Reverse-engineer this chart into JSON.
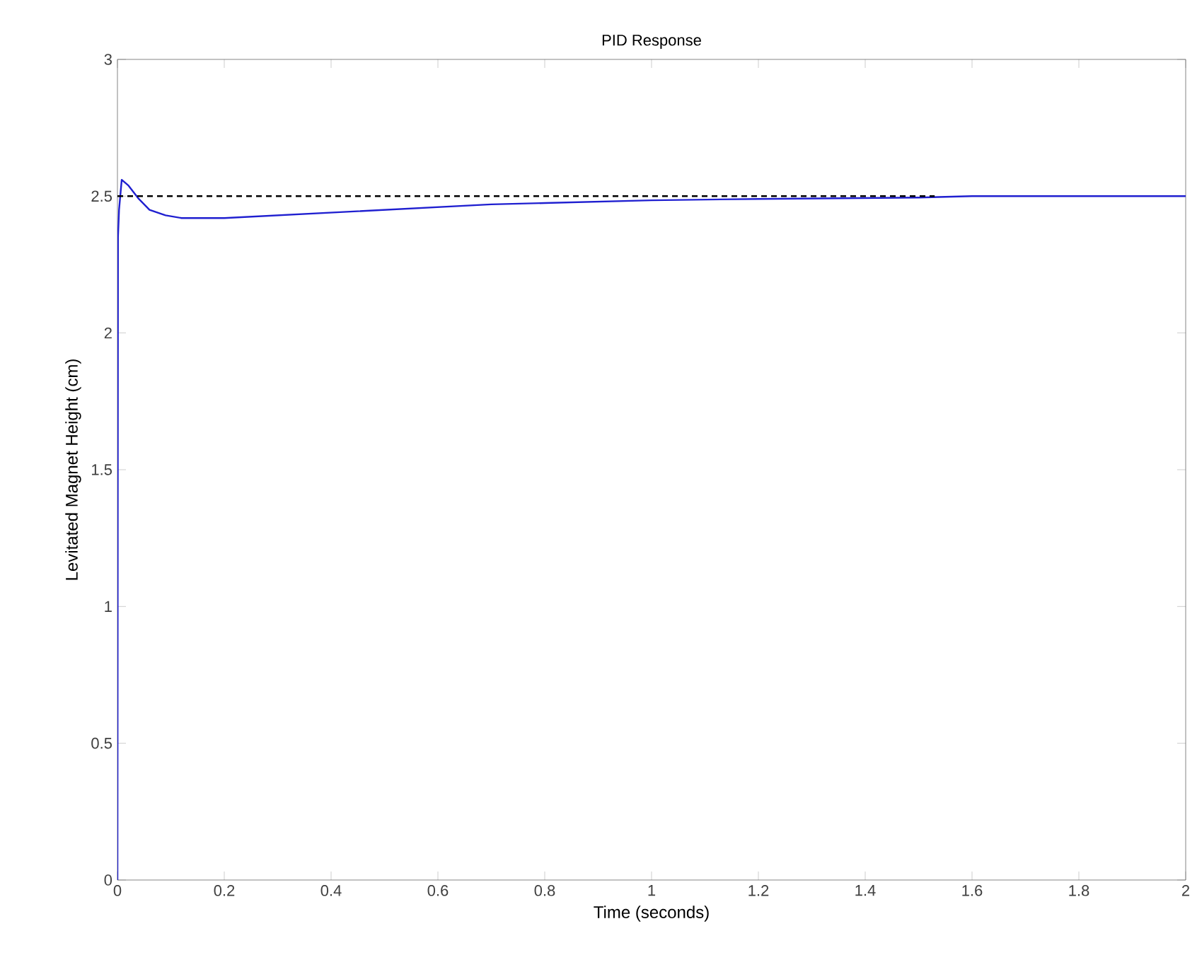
{
  "chart_data": {
    "type": "line",
    "title": "PID Response",
    "xlabel": "Time (seconds)",
    "ylabel": "Levitated Magnet Height (cm)",
    "xlim": [
      0,
      2
    ],
    "ylim": [
      0,
      3
    ],
    "xticks": [
      0,
      0.2,
      0.4,
      0.6,
      0.8,
      1,
      1.2,
      1.4,
      1.6,
      1.8,
      2
    ],
    "yticks": [
      0,
      0.5,
      1,
      1.5,
      2,
      2.5,
      3
    ],
    "grid": false,
    "marker": "none",
    "series": [
      {
        "color": "#1f1fd0",
        "line_style": "solid",
        "x": [
          0,
          0.001,
          0.003,
          0.008,
          0.02,
          0.04,
          0.06,
          0.09,
          0.12,
          0.2,
          0.3,
          0.4,
          0.5,
          0.6,
          0.7,
          0.8,
          1.0,
          1.2,
          1.5,
          1.6,
          2
        ],
        "values": [
          0,
          2.35,
          2.45,
          2.56,
          2.54,
          2.49,
          2.45,
          2.43,
          2.42,
          2.42,
          2.43,
          2.44,
          2.45,
          2.46,
          2.47,
          2.475,
          2.485,
          2.49,
          2.495,
          2.5,
          2.5
        ]
      },
      {
        "color": "#000000",
        "line_style": "dashed",
        "x": [
          0,
          1.53
        ],
        "values": [
          2.5,
          2.5
        ]
      }
    ]
  }
}
